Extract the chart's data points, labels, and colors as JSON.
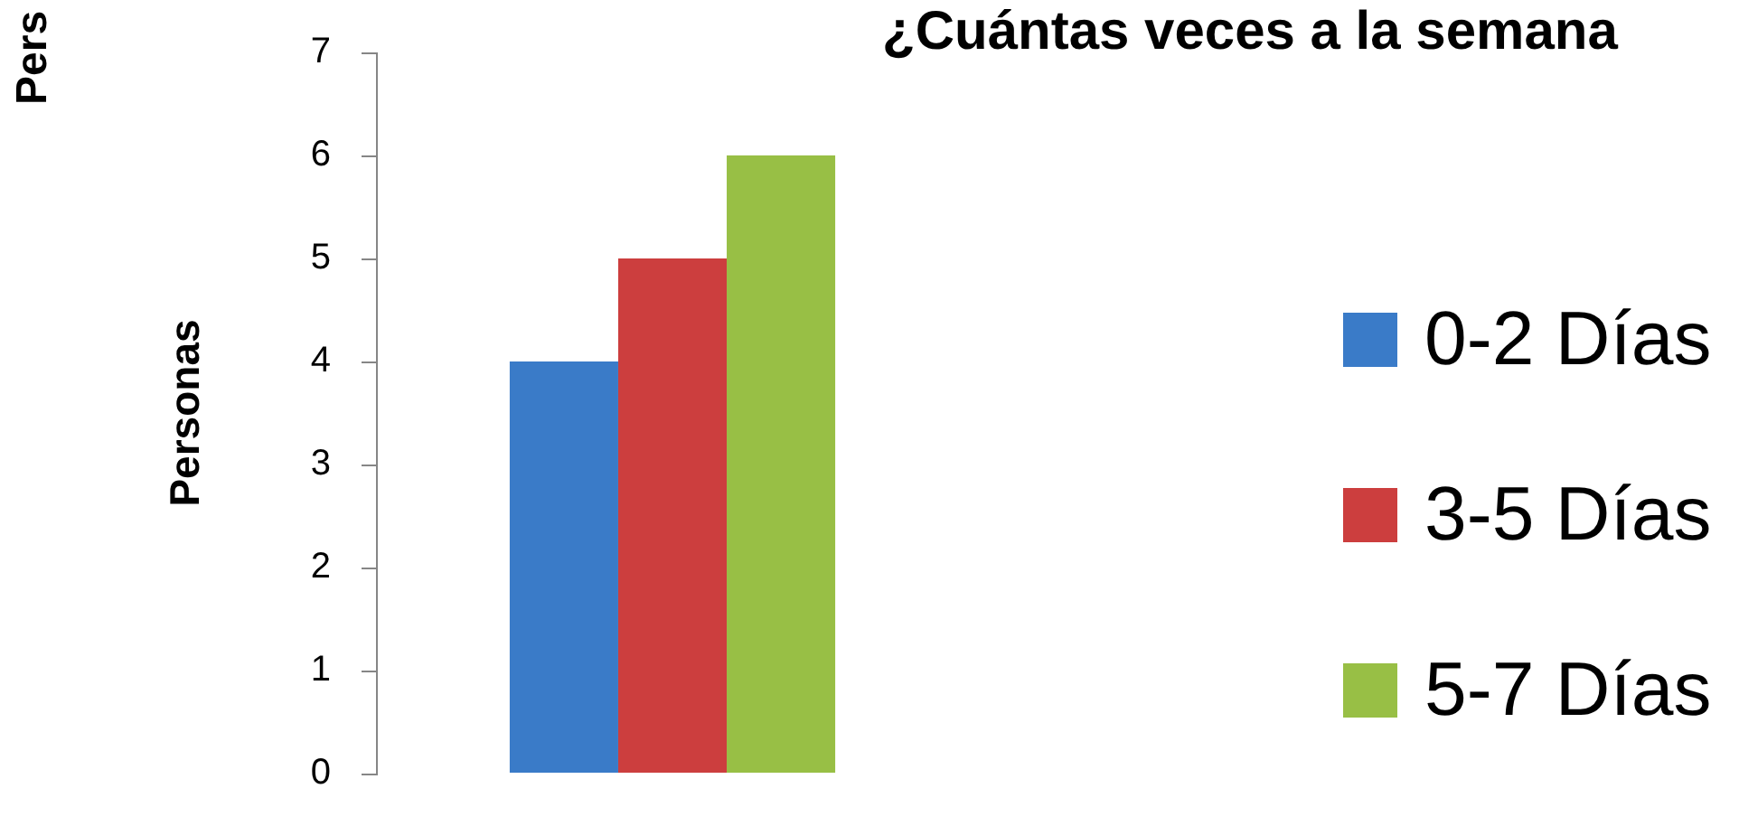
{
  "chart_data": {
    "type": "bar",
    "title": "¿Cuántas veces a la semana",
    "ylabel": "Personas",
    "annotations": [
      "Pers"
    ],
    "categories": [
      null
    ],
    "series": [
      {
        "name": "0-2 Días",
        "color": "#3a7bc8",
        "values": [
          4
        ]
      },
      {
        "name": "3-5 Días",
        "color": "#cc3e3e",
        "values": [
          5
        ]
      },
      {
        "name": "5-7 Días",
        "color": "#98bf45",
        "values": [
          6
        ]
      }
    ],
    "ylim": [
      0,
      7
    ],
    "yticks": [
      0,
      1,
      2,
      3,
      4,
      5,
      6,
      7
    ],
    "grid": false,
    "legend": "right",
    "tick_labels": "y"
  }
}
